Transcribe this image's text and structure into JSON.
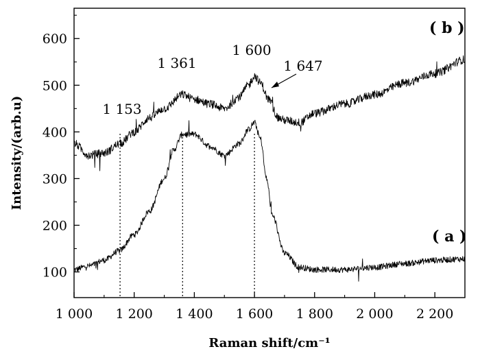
{
  "chart_data": {
    "type": "line",
    "xlabel": "Raman shift/cm⁻¹",
    "ylabel": "Intensity/(arb.u)",
    "xlim": [
      1000,
      2300
    ],
    "ylim": [
      45,
      665
    ],
    "x_ticks": [
      1000,
      1200,
      1400,
      1600,
      1800,
      2000,
      2200
    ],
    "x_tick_labels": [
      "1 000",
      "1 200",
      "1 400",
      "1 600",
      "1 800",
      "2 000",
      "2 200"
    ],
    "y_ticks": [
      100,
      200,
      300,
      400,
      500,
      600
    ],
    "y_tick_labels": [
      "100",
      "200",
      "300",
      "400",
      "500",
      "600"
    ],
    "grid": false,
    "legend": "none",
    "series": [
      {
        "name": "(a)",
        "x": [
          1000,
          1050,
          1100,
          1150,
          1200,
          1250,
          1300,
          1330,
          1361,
          1400,
          1450,
          1500,
          1550,
          1580,
          1600,
          1620,
          1640,
          1660,
          1700,
          1750,
          1800,
          1900,
          2000,
          2100,
          2200,
          2300
        ],
        "values": [
          105,
          113,
          125,
          145,
          180,
          230,
          300,
          360,
          395,
          395,
          370,
          350,
          375,
          405,
          420,
          385,
          300,
          220,
          140,
          110,
          105,
          105,
          110,
          118,
          125,
          128
        ]
      },
      {
        "name": "(b)",
        "x": [
          1000,
          1050,
          1100,
          1153,
          1200,
          1250,
          1300,
          1361,
          1400,
          1450,
          1500,
          1550,
          1580,
          1600,
          1620,
          1647,
          1680,
          1700,
          1750,
          1800,
          1900,
          2000,
          2100,
          2200,
          2300
        ],
        "values": [
          375,
          350,
          355,
          375,
          400,
          430,
          450,
          480,
          470,
          460,
          450,
          475,
          500,
          520,
          505,
          470,
          430,
          425,
          420,
          440,
          460,
          480,
          505,
          525,
          555
        ]
      }
    ],
    "annotations": [
      {
        "label": "1 153",
        "x": 1153
      },
      {
        "label": "1 361",
        "x": 1361
      },
      {
        "label": "1 600",
        "x": 1600
      },
      {
        "label": "1 647",
        "x": 1647
      }
    ],
    "series_labels": [
      "( a )",
      "( b )"
    ]
  }
}
